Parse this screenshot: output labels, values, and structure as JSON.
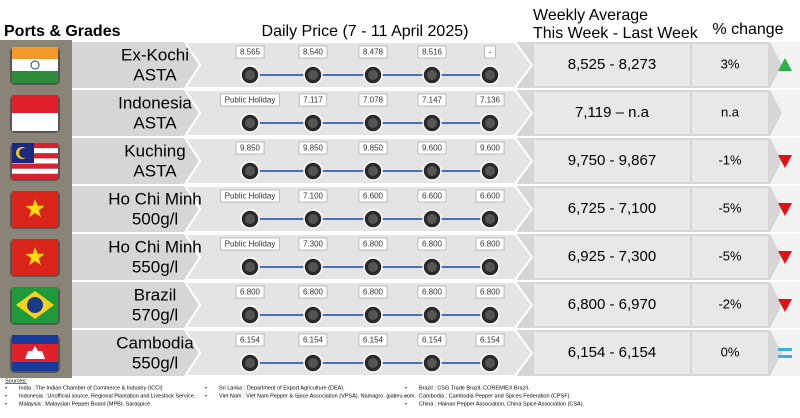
{
  "header": {
    "ports": "Ports & Grades",
    "daily": "Daily Price (7 - 11 April 2025)",
    "weekly_line1": "Weekly Average",
    "weekly_line2": "This Week - Last Week",
    "change": "% change"
  },
  "rows": [
    {
      "port": "Ex-Kochi",
      "grade": "ASTA",
      "daily": [
        "8.565",
        "8.540",
        "8.478",
        "8.516",
        "-"
      ],
      "weekly": "8,525 - 8,273",
      "change": "3%",
      "trend": "up"
    },
    {
      "port": "Indonesia",
      "grade": "ASTA",
      "daily": [
        "Public Holiday",
        "7.117",
        "7.078",
        "7.147",
        "7.136"
      ],
      "weekly": "7,119 – n.a",
      "change": "n.a"
    },
    {
      "port": "Kuching",
      "grade": "ASTA",
      "daily": [
        "9.850",
        "9.850",
        "9.850",
        "9.600",
        "9.600"
      ],
      "weekly": "9,750 - 9,867",
      "change": "-1%",
      "trend": "down"
    },
    {
      "port": "Ho Chi Minh",
      "grade": "500g/l",
      "daily": [
        "Public Holiday",
        "7.100",
        "6.600",
        "6.600",
        "6.600"
      ],
      "weekly": "6,725 - 7,100",
      "change": "-5%",
      "trend": "down"
    },
    {
      "port": "Ho Chi Minh",
      "grade": "550g/l",
      "daily": [
        "Public Holiday",
        "7.300",
        "6.800",
        "6.800",
        "6.800"
      ],
      "weekly": "6,925 - 7,300",
      "change": "-5%",
      "trend": "down"
    },
    {
      "port": "Brazil",
      "grade": "570g/l",
      "daily": [
        "6.800",
        "6.800",
        "6.800",
        "6.800",
        "6.800"
      ],
      "weekly": "6,800 - 6,970",
      "change": "-2%",
      "trend": "down"
    },
    {
      "port": "Cambodia",
      "grade": "550g/l",
      "daily": [
        "6.154",
        "6.154",
        "6.154",
        "6.154",
        "6.154"
      ],
      "weekly": "6,154 - 6,154",
      "change": "0%",
      "trend": "equal"
    }
  ],
  "sources": {
    "title": "Sources:",
    "columns": [
      [
        "India : The Indian Chamber of Commerce & Industry (ICCI)",
        "Indonesia : Unofficial source, Regional Plantation and Livestock Service.",
        "Malaysia : Malaysian Pepper Board (MPB). Saraspice."
      ],
      [
        "Sri Lanka : Department of Export Agriculture (DEA).",
        "Viet Nam : Viet Nam Pepper & Spice Association (VPSA). Namagro. giatieu.com."
      ],
      [
        "Brazil : CSG Trade Brazil, COREMIEX Brazil.",
        "Cambodia : Cambodia Pepper and Spices Federation (CPSF).",
        "China : Hainan Pepper Association, China Spice Association (CSA)."
      ]
    ]
  }
}
